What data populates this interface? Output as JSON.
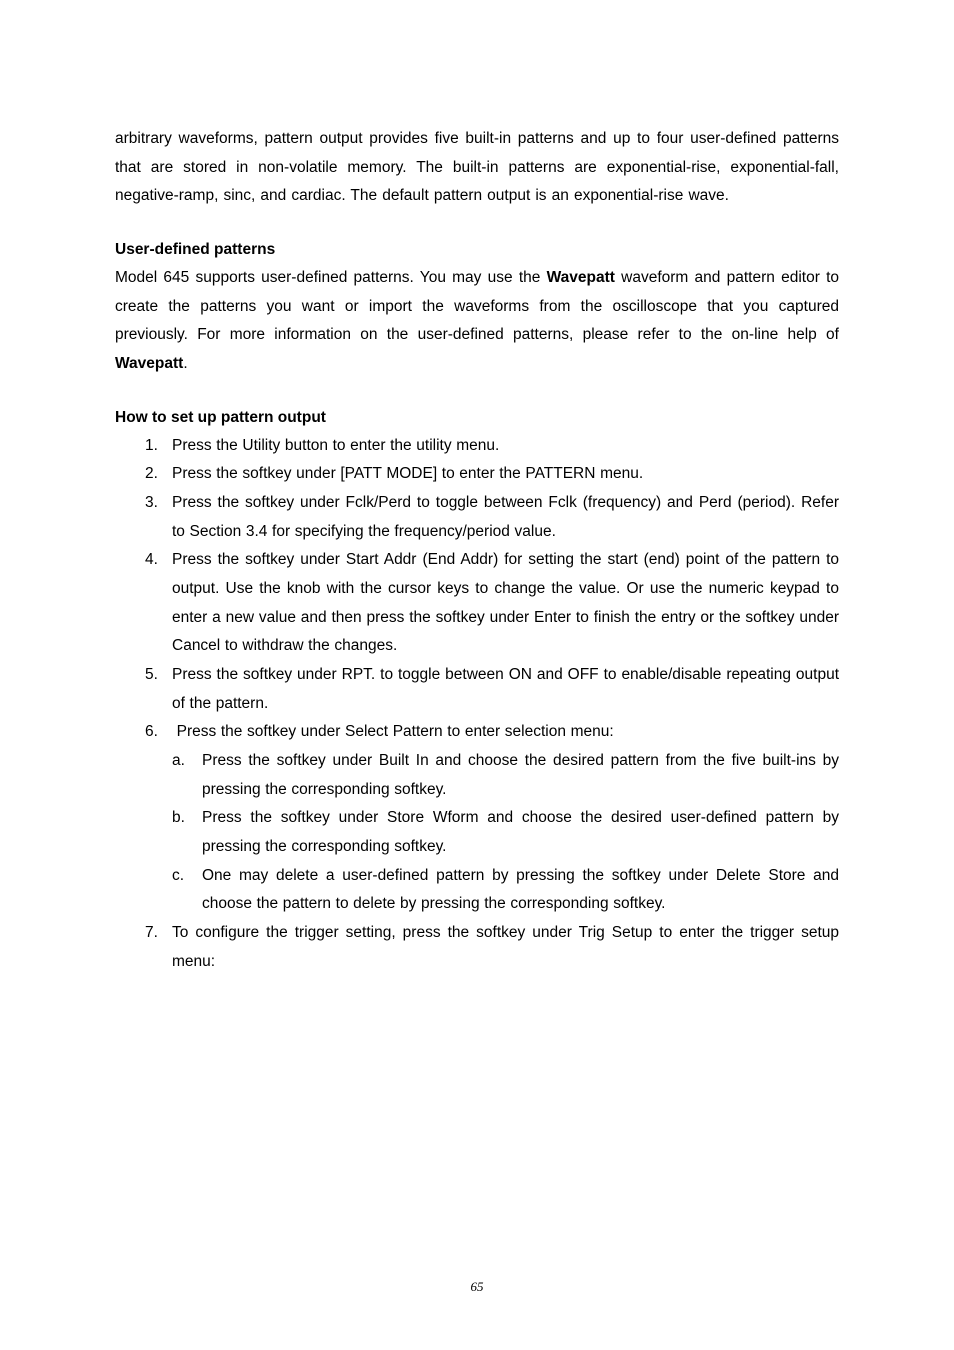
{
  "intro_para": "arbitrary waveforms, pattern output provides five built-in patterns and up to four user-defined patterns that are stored in non-volatile memory. The built-in patterns are exponential-rise, exponential-fall, negative-ramp, sinc, and cardiac. The default pattern output is an exponential-rise wave.",
  "section1": {
    "heading": "User-defined patterns",
    "body_prefix": "Model 645 supports user-defined patterns. You may use the ",
    "bold1": "Wavepatt",
    "body_mid": " waveform and pattern editor to create the patterns you want or import the waveforms from the oscilloscope that you captured previously. For more information on the user-defined patterns, please refer to the on-line help of ",
    "bold2": "Wavepatt",
    "body_suffix": "."
  },
  "section2": {
    "heading": "How to set up pattern output",
    "items": [
      "Press the Utility button to enter the utility menu.",
      "Press the softkey under [PATT MODE] to enter the PATTERN menu.",
      "Press the softkey under Fclk/Perd to toggle between Fclk (frequency) and Perd (period). Refer to Section 3.4 for specifying the frequency/period value.",
      "Press the softkey under Start Addr (End Addr) for setting the start (end) point of the pattern to output. Use the knob with the cursor keys to change the value. Or use the numeric keypad to enter a new value and then press the softkey under Enter to finish the entry or the softkey under Cancel to withdraw the changes.",
      "Press the softkey under RPT. to toggle between ON and OFF to enable/disable repeating output of the pattern.",
      "Press the softkey under Select Pattern to enter selection menu:",
      "To configure the trigger setting, press the softkey under Trig Setup to enter the trigger setup menu:"
    ],
    "subitems6": [
      "Press the softkey under Built In and choose the desired pattern from the five built-ins by pressing the corresponding softkey.",
      "Press the softkey under Store Wform and choose the desired user-defined pattern by pressing the corresponding softkey.",
      "One may delete a user-defined pattern by pressing the softkey under Delete Store and choose the pattern to delete by pressing the corresponding softkey."
    ]
  },
  "page_number": "65"
}
